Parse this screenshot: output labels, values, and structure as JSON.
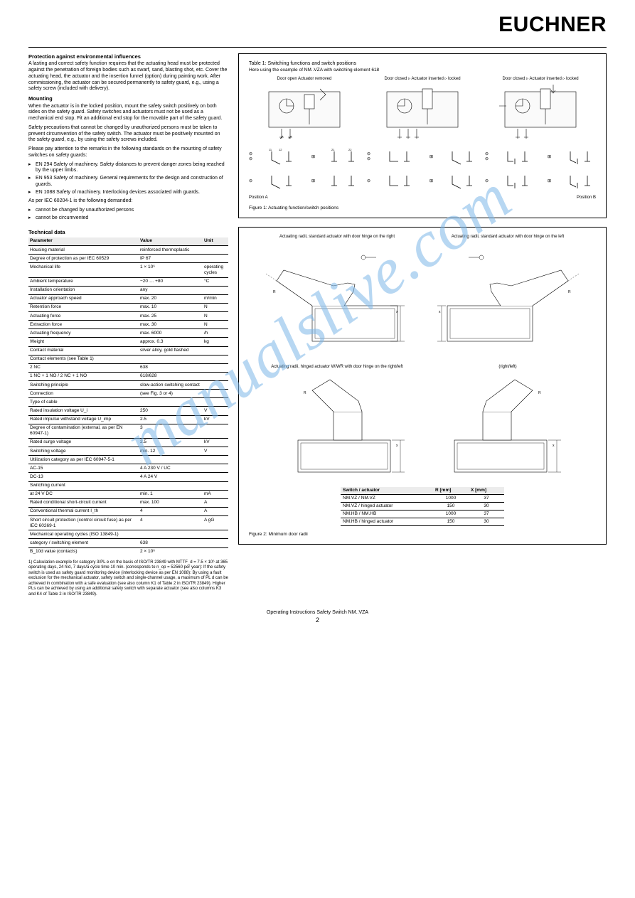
{
  "brand": "EUCHNER",
  "watermark": "manualslive.com",
  "left": {
    "protect_title": "Protection against environmental influences",
    "protect_body": "A lasting and correct safety function requires that the actuating head must be protected against the penetration of foreign bodies such as swarf, sand, blasting shot, etc. Cover the actuating head, the actuator and the insertion funnel (option) during painting work. After commissioning, the actuator can be secured permanently to safety guard, e.g., using a safety screw (included with delivery).",
    "mount_title": "Mounting",
    "mount_p1": "When the actuator is in the locked position, mount the safety switch positively on both sides on the safety guard. Safety switches and actuators must not be used as a mechanical end stop. Fit an additional end stop for the movable part of the safety guard.",
    "mount_p2": "Safety precautions that cannot be changed by unauthorized persons must be taken to prevent circumvention of the safety switch. The actuator must be positively mounted on the safety guard, e.g., by using the safety screws included.",
    "safety_lead": "Please pay attention to the remarks in the following standards on the mounting of safety switches on safety guards:",
    "safety_items": [
      "EN 294 Safety of machinery. Safety distances to prevent danger zones being reached by the upper limbs.",
      "EN 953 Safety of machinery. General requirements for the design and construction of guards.",
      "EN 1088 Safety of machinery. Interlocking devices associated with guards."
    ],
    "iec_lead": "As per IEC 60204-1 is the following demanded:",
    "iec_items": [
      "cannot be changed by unauthorized persons",
      "cannot be circumvented"
    ],
    "specs_title": "Technical data",
    "specs_headers": [
      "Parameter",
      "Value",
      "Unit"
    ],
    "specs_rows": [
      {
        "p": "Housing material",
        "v": "reinforced thermoplastic",
        "u": ""
      },
      {
        "p": "Degree of protection as per IEC 60529",
        "v": "IP 67",
        "u": ""
      },
      {
        "p": "Mechanical life",
        "v": "1 × 10⁶",
        "u": "operating cycles"
      },
      {
        "p": "Ambient temperature",
        "v": "−20 … +80",
        "u": "°C"
      },
      {
        "p": "Installation orientation",
        "v": "any",
        "u": ""
      },
      {
        "p": "Actuator approach speed",
        "v": "max. 20",
        "u": "m/min"
      },
      {
        "p": "Retention force",
        "v": "max. 10",
        "u": "N"
      },
      {
        "p": "Actuating force",
        "v": "max. 25",
        "u": "N"
      },
      {
        "p": "Extraction force",
        "v": "max. 30",
        "u": "N"
      },
      {
        "p": "Actuating frequency",
        "v": "max. 6000",
        "u": "/h"
      },
      {
        "p": "Weight",
        "v": "approx. 0.3",
        "u": "kg"
      },
      {
        "p": "Contact material",
        "v": "silver alloy, gold flashed",
        "u": ""
      },
      {
        "p": "Contact elements (see Table 1)",
        "v": "",
        "u": ""
      },
      {
        "p": "2 NC",
        "v": "638",
        "u": ""
      },
      {
        "p": "1 NC + 1 NO / 2 NC + 1 NO",
        "v": "618/628",
        "u": ""
      },
      {
        "p": "Switching principle",
        "v": "slow-action switching contact",
        "u": ""
      },
      {
        "p": "Connection",
        "v": "(see Fig. 3 or 4)",
        "u": ""
      },
      {
        "p": "Type of cable",
        "v": "",
        "u": ""
      },
      {
        "p": "Rated insulation voltage U_i",
        "v": "250",
        "u": "V"
      },
      {
        "p": "Rated impulse withstand voltage U_imp",
        "v": "2.5",
        "u": "kV"
      },
      {
        "p": "Degree of contamination (external, as per EN 60947-1)",
        "v": "3",
        "u": ""
      },
      {
        "p": "Rated surge voltage",
        "v": "2.5",
        "u": "kV"
      },
      {
        "p": "Switching voltage",
        "v": "min. 12",
        "u": "V"
      },
      {
        "p": "Utilization category as per IEC 60947-5-1",
        "v": "",
        "u": ""
      },
      {
        "p": "AC-15",
        "v": "4 A 230 V / UC",
        "u": ""
      },
      {
        "p": "DC-13",
        "v": "4 A 24 V",
        "u": ""
      },
      {
        "p": "Switching current",
        "v": "",
        "u": ""
      },
      {
        "p": "at 24 V DC",
        "v": "min. 1",
        "u": "mA"
      },
      {
        "p": "Rated conditional short-circuit current",
        "v": "max. 100",
        "u": "A"
      },
      {
        "p": "Conventional thermal current I_th",
        "v": "4",
        "u": "A"
      },
      {
        "p": "Short circuit protection (control circuit fuse) as per IEC 60269-1",
        "v": "4",
        "u": "A gG"
      },
      {
        "p": "Mechanical operating cycles (ISO 13849-1)",
        "v": "",
        "u": ""
      },
      {
        "p": "category / switching element",
        "v": "638",
        "u": ""
      },
      {
        "p": "B_10d value (contacts)",
        "v": "2 × 10⁶",
        "u": ""
      }
    ],
    "note_sup": "1)",
    "note_body": "Calculation example for category 3/PL e on the basis of ISO/TR 23849 with MTTF_d = 7.5 × 10⁶ at 365 operating days, 24 h/d, 7 days/a cycle time 10 min. (corresponds to n_op = 52560 per year): If the safety switch is used as safety guard monitoring device (interlocking device as per EN 1088): By using a fault exclusion for the mechanical actuator, safety switch and single-channel usage, a maximum of PL d can be achieved in combination with a safe evaluation (see also column K1 of Table 2 in ISO/TR 23849). Higher PLs can be achieved by using an additional safety switch with separate actuator (see also columns K3 and K4 of Table 2 in ISO/TR 23849)."
  },
  "fig1": {
    "title": "Table 1: Switching functions and switch positions",
    "sub": "Here using the example of NM..VZA with switching element 618",
    "lbl11": "11",
    "lbl12": "12",
    "lbl21": "21",
    "lbl22": "22",
    "rowA1": "NC 11-12",
    "rowA2": "618",
    "rowB1": "NO 21-22",
    "stateA": "Door open\nActuator removed",
    "stateB": "Door closed ▹\nActuator inserted ▹ locked",
    "stateC": "Door closed ▹\nActuator inserted ▹ locked",
    "pos_left": "Position A",
    "pos_right": "Position B",
    "figlabel": "Figure 1: Actuating function/switch positions",
    "colors": {
      "line": "#000000",
      "fill_grey": "#f4f4f4"
    }
  },
  "fig2": {
    "title_a": "Actuating radii, standard actuator with door hinge on the right",
    "title_b": "Actuating radii, standard actuator with door hinge on the left",
    "title_c": "Actuating radii, hinged actuator W/WR with door hinge on the right/left",
    "title_d": "(right/left)",
    "figlabel": "Figure 2: Minimum door radii",
    "door_headers": [
      "Switch / actuator",
      "R [mm]",
      "X [mm]"
    ],
    "door_rows": [
      {
        "s": "NM.VZ / NM.VZ",
        "r": "1000",
        "x": "37"
      },
      {
        "s": "NM.VZ / hinged actuator",
        "r": "150",
        "x": "30"
      },
      {
        "s": "NM.HB / NM.HB",
        "r": "1000",
        "x": "37"
      },
      {
        "s": "NM.HB / hinged actuator",
        "r": "150",
        "x": "30"
      }
    ],
    "colors": {
      "line": "#000000",
      "fill": "#ffffff",
      "hatch": "#000000"
    }
  },
  "footer": "Operating Instructions Safety Switch NM..VZA",
  "page": "2"
}
